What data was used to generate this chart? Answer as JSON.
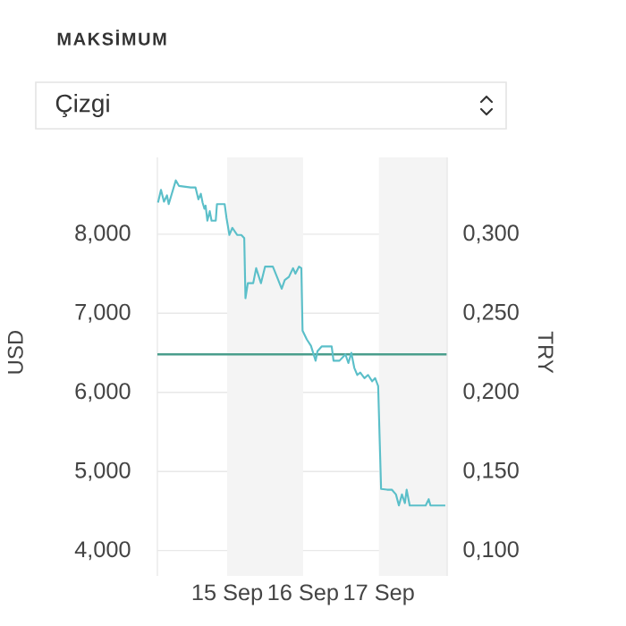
{
  "chart_data": {
    "type": "line",
    "title": "MAKSİMUM",
    "ylabel": "USD",
    "y2label": "TRY",
    "annotations": [
      "Çizgi"
    ],
    "x": [
      "--09-14T02:07",
      "--09-14T03:03",
      "--09-14T04:00",
      "--09-14T04:57",
      "--09-14T05:30",
      "--09-14T07:45",
      "--09-14T08:43",
      "--09-14T12:27",
      "--09-14T13:58",
      "--09-14T14:54",
      "--09-14T15:40",
      "--09-14T16:13",
      "--09-14T16:48",
      "--09-14T17:10",
      "--09-14T17:44",
      "--09-14T18:29",
      "--09-14T19:03",
      "--09-14T20:23",
      "--09-14T20:46",
      "--09-14T23:12",
      "--09-14T23:46",
      "--09-15T00:42",
      "--09-15T01:38",
      "--09-15T03:09",
      "--09-15T04:28",
      "--09-15T05:24",
      "--09-15T05:47",
      "--09-15T06:32",
      "--09-15T08:14",
      "--09-15T09:10",
      "--09-15T10:41",
      "--09-15T12:00",
      "--09-15T14:27",
      "--09-15T15:46",
      "--09-15T17:15",
      "--09-15T18:13",
      "--09-15T19:32",
      "--09-15T20:50",
      "--09-15T21:36",
      "--09-15T22:44",
      "--09-15T23:28",
      "--09-15T23:51",
      "--09-16T01:11",
      "--09-16T02:30",
      "--09-16T03:59",
      "--09-16T04:34",
      "--09-16T05:53",
      "--09-16T09:04",
      "--09-16T09:39",
      "--09-16T11:31",
      "--09-16T13:25",
      "--09-16T14:21",
      "--09-16T15:17",
      "--09-16T16:13",
      "--09-16T17:10",
      "--09-16T18:07",
      "--09-16T19:26",
      "--09-16T20:34",
      "--09-16T21:53",
      "--09-16T22:49",
      "--09-16T23:46",
      "--09-17T00:42",
      "--09-17T02:36",
      "--09-17T04:05",
      "--09-17T05:24",
      "--09-17T06:20",
      "--09-17T07:18",
      "--09-17T08:14",
      "--09-17T08:47",
      "--09-17T09:45",
      "--09-17T14:48",
      "--09-17T15:46",
      "--09-17T16:19",
      "--09-17T21:01"
    ],
    "series": [
      {
        "color": "#5bbfc9",
        "values": [
          8.4,
          8.56,
          8.41,
          8.49,
          8.38,
          8.68,
          8.61,
          8.59,
          8.59,
          8.44,
          8.51,
          8.4,
          8.32,
          8.36,
          8.17,
          8.29,
          8.17,
          8.17,
          8.38,
          8.38,
          8.21,
          7.99,
          8.08,
          7.99,
          7.99,
          7.95,
          7.19,
          7.38,
          7.38,
          7.57,
          7.38,
          7.59,
          7.59,
          7.46,
          7.31,
          7.42,
          7.46,
          7.57,
          7.5,
          7.59,
          7.57,
          6.78,
          6.67,
          6.59,
          6.4,
          6.52,
          6.58,
          6.58,
          6.4,
          6.4,
          6.48,
          6.37,
          6.5,
          6.31,
          6.22,
          6.25,
          6.18,
          6.22,
          6.14,
          6.18,
          6.08,
          4.78,
          4.77,
          4.77,
          4.71,
          4.57,
          4.71,
          4.6,
          4.77,
          4.57,
          4.57,
          4.65,
          4.57,
          4.57
        ]
      }
    ],
    "xlim": [
      "--09-14T01:55",
      "--09-17T21:36"
    ],
    "xticks": [
      {
        "value": "--09-15",
        "label": "15 Sep"
      },
      {
        "value": "--09-16",
        "label": "16 Sep"
      },
      {
        "value": "--09-17",
        "label": "17 Sep"
      }
    ],
    "ylim": [
      3.68,
      8.97
    ],
    "yticks": [
      {
        "value": 4,
        "label": "4,000"
      },
      {
        "value": 5,
        "label": "5,000"
      },
      {
        "value": 6,
        "label": "6,000"
      },
      {
        "value": 7,
        "label": "7,000"
      },
      {
        "value": 8,
        "label": "8,000"
      }
    ],
    "y2lim": [
      0.084,
      0.3485
    ],
    "y2ticks": [
      {
        "value": 0.1,
        "label": "0,100"
      },
      {
        "value": 0.15,
        "label": "0,150"
      },
      {
        "value": 0.2,
        "label": "0,200"
      },
      {
        "value": 0.25,
        "label": "0,250"
      },
      {
        "value": 0.3,
        "label": "0,300"
      }
    ],
    "ref_lines": [
      {
        "axis": "y",
        "value": 6.48,
        "color": "#4a9e8c"
      }
    ],
    "bands": [
      {
        "axis": "x",
        "from": "--09-15",
        "to": "--09-16",
        "color": "#f4f4f4"
      },
      {
        "axis": "x",
        "from": "--09-17",
        "to": "--09-17T21:36",
        "color": "#f4f4f4"
      }
    ],
    "grid": "y",
    "marker": "none",
    "line_style": "solid"
  }
}
